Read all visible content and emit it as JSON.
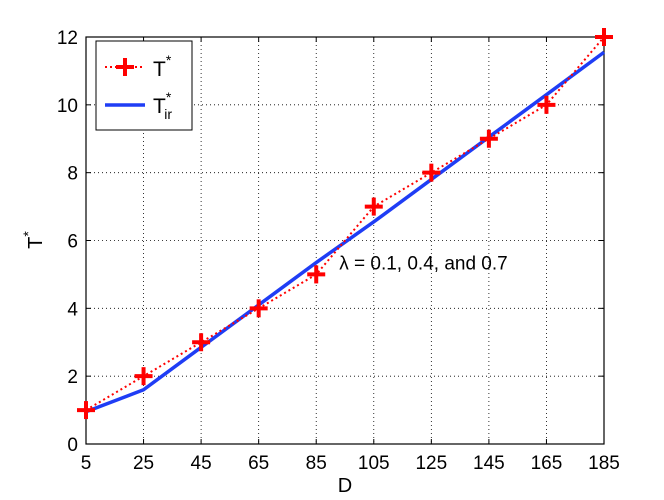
{
  "chart_data": {
    "type": "line",
    "title": "",
    "xlabel": "D",
    "ylabel": "T*",
    "ylabel_main": "T",
    "ylabel_sup": "*",
    "xlim": [
      5,
      185
    ],
    "ylim": [
      0,
      12
    ],
    "x_ticks": [
      5,
      25,
      45,
      65,
      85,
      105,
      125,
      145,
      165,
      185
    ],
    "y_ticks": [
      0,
      2,
      4,
      6,
      8,
      10,
      12
    ],
    "grid": true,
    "legend_position": "top-left",
    "series": [
      {
        "name": "T*",
        "name_main": "T",
        "name_sup": "*",
        "style": "dotted line with plus markers",
        "color": "#ff0000",
        "x": [
          5,
          25,
          45,
          65,
          85,
          105,
          125,
          145,
          165,
          185
        ],
        "y": [
          1,
          2,
          3,
          4,
          5,
          7,
          8,
          9,
          10,
          12
        ]
      },
      {
        "name": "T*ir",
        "name_main": "T",
        "name_sup": "*",
        "name_sub": "ir",
        "style": "solid line",
        "color": "#1f3df5",
        "x": [
          5,
          25,
          45,
          65,
          85,
          105,
          125,
          145,
          165,
          185
        ],
        "y": [
          0.95,
          1.6,
          2.85,
          4.1,
          5.35,
          6.55,
          7.8,
          9.05,
          10.3,
          11.55
        ]
      }
    ],
    "annotations": [
      {
        "text": "λ = 0.1, 0.4, and 0.7",
        "x": 93,
        "y": 5.15
      }
    ]
  }
}
